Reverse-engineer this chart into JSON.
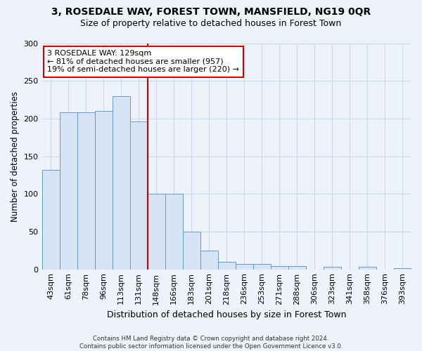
{
  "title": "3, ROSEDALE WAY, FOREST TOWN, MANSFIELD, NG19 0QR",
  "subtitle": "Size of property relative to detached houses in Forest Town",
  "xlabel": "Distribution of detached houses by size in Forest Town",
  "ylabel": "Number of detached properties",
  "categories": [
    "43sqm",
    "61sqm",
    "78sqm",
    "96sqm",
    "113sqm",
    "131sqm",
    "148sqm",
    "166sqm",
    "183sqm",
    "201sqm",
    "218sqm",
    "236sqm",
    "253sqm",
    "271sqm",
    "288sqm",
    "306sqm",
    "323sqm",
    "341sqm",
    "358sqm",
    "376sqm",
    "393sqm"
  ],
  "values": [
    132,
    208,
    208,
    210,
    230,
    196,
    100,
    100,
    50,
    25,
    10,
    7,
    7,
    4,
    4,
    0,
    3,
    0,
    3,
    0,
    2
  ],
  "bar_color": "#d6e4f5",
  "bar_edge_color": "#6699cc",
  "marker_index": 5,
  "marker_color": "#cc0000",
  "annotation_text": "3 ROSEDALE WAY: 129sqm\n← 81% of detached houses are smaller (957)\n19% of semi-detached houses are larger (220) →",
  "annotation_box_color": "white",
  "annotation_box_edge": "#cc0000",
  "ylim": [
    0,
    300
  ],
  "yticks": [
    0,
    50,
    100,
    150,
    200,
    250,
    300
  ],
  "title_fontsize": 10,
  "subtitle_fontsize": 9,
  "xlabel_fontsize": 9,
  "ylabel_fontsize": 8.5,
  "tick_fontsize": 8,
  "footnote": "Contains HM Land Registry data © Crown copyright and database right 2024.\nContains public sector information licensed under the Open Government Licence v3.0.",
  "bg_color": "#eef3fb",
  "plot_bg_color": "#eef3fb",
  "grid_color": "#c8d8ed"
}
